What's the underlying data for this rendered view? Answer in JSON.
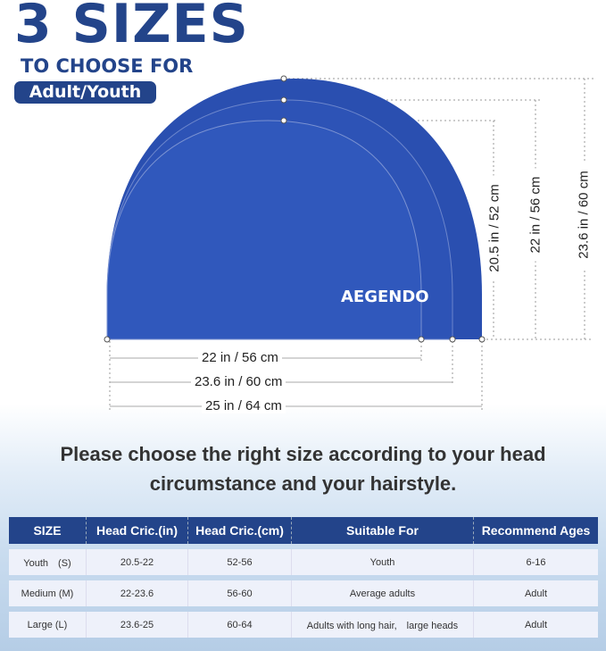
{
  "header": {
    "title": "3 SIZES",
    "subtitle": "TO CHOOSE FOR",
    "badge": "Adult/Youth"
  },
  "product": {
    "brand": "AEGENDO",
    "color": "#2f55b8"
  },
  "measurements": {
    "height": [
      "20.5 in / 52 cm",
      "22 in / 56 cm",
      "23.6 in / 60 cm"
    ],
    "width": [
      "22 in / 56 cm",
      "23.6 in / 60 cm",
      "25 in / 64 cm"
    ]
  },
  "heading": [
    "Please choose the right size according to your head",
    "circumstance and your hairstyle."
  ],
  "table": {
    "headers": [
      "SIZE",
      "Head Cric.(in)",
      "Head Cric.(cm)",
      "Suitable For",
      "Recommend Ages"
    ],
    "rows": [
      [
        "Youth　(S)",
        "20.5-22",
        "52-56",
        "Youth",
        "6-16"
      ],
      [
        "Medium (M)",
        "22-23.6",
        "56-60",
        "Average adults",
        "Adult"
      ],
      [
        "Large (L)",
        "23.6-25",
        "60-64",
        "Adults with long hair,　large heads",
        "Adult"
      ]
    ]
  }
}
